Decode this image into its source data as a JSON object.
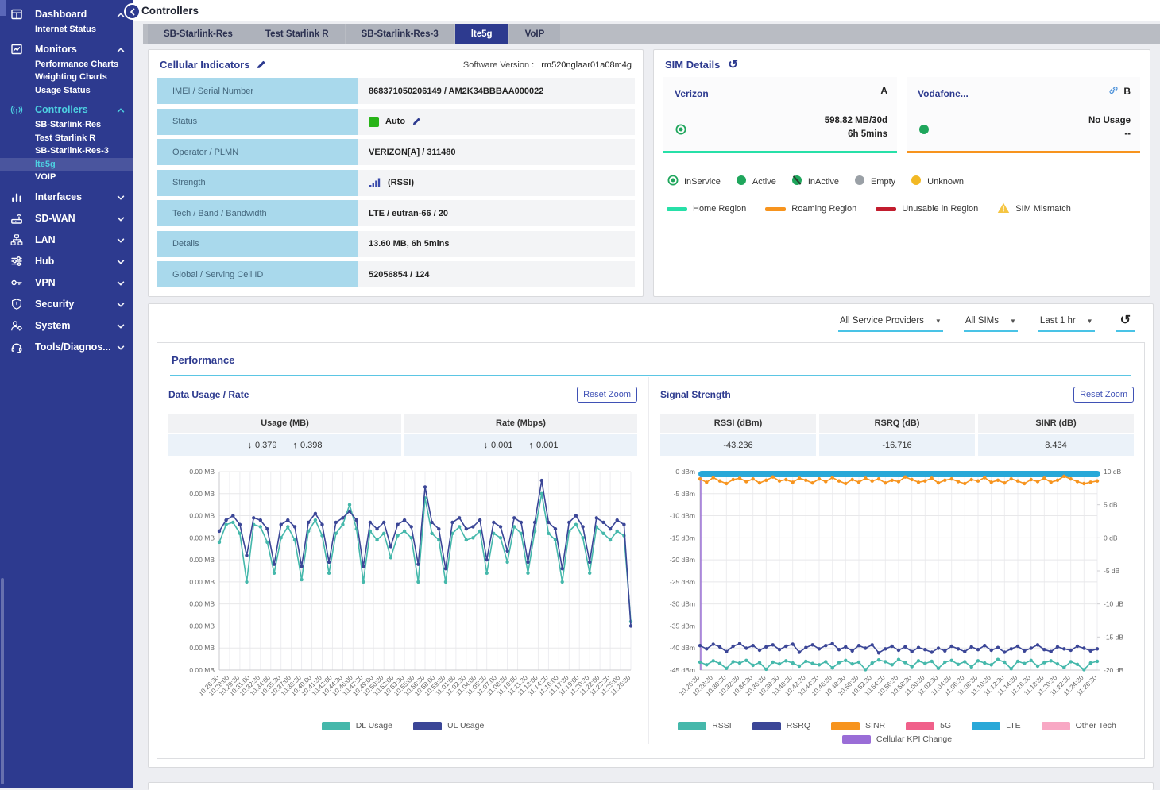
{
  "header": {
    "title": "Controllers"
  },
  "tabs": {
    "active_index": 3,
    "items": [
      "SB-Starlink-Res",
      "Test Starlink R",
      "SB-Starlink-Res-3",
      "lte5g",
      "VoIP"
    ]
  },
  "sidebar": {
    "items": [
      {
        "label": "Dashboard",
        "icon": "dashboard-icon",
        "expanded": true,
        "accent": false,
        "children": [
          {
            "label": "Internet Status",
            "selected": false
          }
        ]
      },
      {
        "label": "Monitors",
        "icon": "monitors-icon",
        "expanded": true,
        "accent": false,
        "children": [
          {
            "label": "Performance Charts",
            "selected": false
          },
          {
            "label": "Weighting Charts",
            "selected": false
          },
          {
            "label": "Usage Status",
            "selected": false
          }
        ]
      },
      {
        "label": "Controllers",
        "icon": "controllers-icon",
        "expanded": true,
        "accent": true,
        "children": [
          {
            "label": "SB-Starlink-Res",
            "selected": false
          },
          {
            "label": "Test Starlink R",
            "selected": false
          },
          {
            "label": "SB-Starlink-Res-3",
            "selected": false
          },
          {
            "label": "lte5g",
            "selected": true
          },
          {
            "label": "VOIP",
            "selected": false
          }
        ]
      },
      {
        "label": "Interfaces",
        "icon": "interfaces-icon",
        "expanded": false,
        "accent": false,
        "children": []
      },
      {
        "label": "SD-WAN",
        "icon": "sdwan-icon",
        "expanded": false,
        "accent": false,
        "children": []
      },
      {
        "label": "LAN",
        "icon": "lan-icon",
        "expanded": false,
        "accent": false,
        "children": []
      },
      {
        "label": "Hub",
        "icon": "hub-icon",
        "expanded": false,
        "accent": false,
        "children": []
      },
      {
        "label": "VPN",
        "icon": "vpn-icon",
        "expanded": false,
        "accent": false,
        "children": []
      },
      {
        "label": "Security",
        "icon": "security-icon",
        "expanded": false,
        "accent": false,
        "children": []
      },
      {
        "label": "System",
        "icon": "system-icon",
        "expanded": false,
        "accent": false,
        "children": []
      },
      {
        "label": "Tools/Diagnos...",
        "icon": "tools-icon",
        "expanded": false,
        "accent": false,
        "children": []
      }
    ]
  },
  "cellular": {
    "title": "Cellular Indicators",
    "software_version_label": "Software Version :",
    "software_version": "rm520nglaar01a08m4g",
    "rows": [
      {
        "label": "IMEI / Serial Number",
        "value": "868371050206149 / AM2K34BBBAA000022",
        "type": "text"
      },
      {
        "label": "Status",
        "value": "Auto",
        "type": "status"
      },
      {
        "label": "Operator / PLMN",
        "value": "VERIZON[A] / 311480",
        "type": "text"
      },
      {
        "label": "Strength",
        "value": "(RSSI)",
        "type": "signal"
      },
      {
        "label": "Tech / Band / Bandwidth",
        "value": "LTE / eutran-66 / 20",
        "type": "text"
      },
      {
        "label": "Details",
        "value": "13.60 MB, 6h 5mins",
        "type": "text"
      },
      {
        "label": "Global / Serving Cell ID",
        "value": "52056854 / 124",
        "type": "text"
      }
    ]
  },
  "sim_details": {
    "title": "SIM Details",
    "cards": [
      {
        "name": "Verizon",
        "slot": "A",
        "linked": false,
        "status": "inservice",
        "usage": "598.82 MB/30d",
        "duration": "6h 5mins",
        "region_color": "#27e0a8"
      },
      {
        "name": "Vodafone...",
        "slot": "B",
        "linked": true,
        "status": "active",
        "usage": "No Usage",
        "duration": "--",
        "region_color": "#f7941e"
      }
    ],
    "status_legend": [
      {
        "label": "InService",
        "type": "inservice"
      },
      {
        "label": "Active",
        "type": "active"
      },
      {
        "label": "InActive",
        "type": "inactive"
      },
      {
        "label": "Empty",
        "type": "empty"
      },
      {
        "label": "Unknown",
        "type": "unknown"
      }
    ],
    "region_legend": [
      {
        "label": "Home Region",
        "color": "#27e0a8",
        "type": "bar"
      },
      {
        "label": "Roaming Region",
        "color": "#f7941e",
        "type": "bar"
      },
      {
        "label": "Unusable in Region",
        "color": "#c21d2e",
        "type": "bar"
      },
      {
        "label": "SIM Mismatch",
        "color": "#f5c542",
        "type": "warn"
      }
    ]
  },
  "filters": {
    "service_provider": "All Service Providers",
    "sims": "All SIMs",
    "time_range": "Last 1 hr"
  },
  "performance": {
    "title": "Performance",
    "data_usage": {
      "title": "Data Usage / Rate",
      "reset_zoom": "Reset Zoom",
      "stats": [
        {
          "header": "Usage (MB)",
          "down": "0.379",
          "up": "0.398"
        },
        {
          "header": "Rate (Mbps)",
          "down": "0.001",
          "up": "0.001"
        }
      ]
    },
    "signal": {
      "title": "Signal Strength",
      "reset_zoom": "Reset Zoom",
      "stats": [
        {
          "header": "RSSI (dBm)",
          "value": "-43.236"
        },
        {
          "header": "RSRQ (dB)",
          "value": "-16.716"
        },
        {
          "header": "SINR (dB)",
          "value": "8.434"
        }
      ]
    }
  },
  "colors": {
    "sidebar_bg": "#2d3a8f",
    "accent_cyan": "#4dd0e1",
    "teal_series": "#45b8ab",
    "navy_series": "#3b4697",
    "orange_series": "#f7941e",
    "lte_blue": "#29a8d8",
    "pink_5g": "#f0608a",
    "light_pink": "#f8a8c4",
    "purple_kpi": "#9a6dd7",
    "home_region": "#27e0a8",
    "roaming_region": "#f7941e",
    "unusable_red": "#c21d2e",
    "status_green": "#28b418"
  },
  "chart_data": [
    {
      "type": "line",
      "title": "Data Usage / Rate",
      "ylabel": "Usage (MB)",
      "grid": true,
      "legend_position": "bottom",
      "axes": {
        "left": {
          "lim": [
            0.009,
            0
          ],
          "tick_labels": [
            "0.00 MB",
            "0.00 MB",
            "0.00 MB",
            "0.00 MB",
            "0.00 MB",
            "0.00 MB",
            "0.00 MB",
            "0.00 MB",
            "0.00 MB",
            "0.00 MB"
          ]
        }
      },
      "x_tick_labels": [
        "10:26:30",
        "10:28:00",
        "10:29:30",
        "10:31:00",
        "10:32:30",
        "10:34:00",
        "10:35:30",
        "10:37:00",
        "10:38:30",
        "10:40:00",
        "10:41:30",
        "10:43:00",
        "10:44:30",
        "10:46:00",
        "10:47:30",
        "10:49:00",
        "10:50:30",
        "10:52:00",
        "10:53:30",
        "10:55:00",
        "10:56:30",
        "10:58:00",
        "10:59:30",
        "11:01:00",
        "11:02:30",
        "11:04:00",
        "11:05:30",
        "11:07:00",
        "11:08:30",
        "11:10:00",
        "11:11:30",
        "11:13:00",
        "11:14:30",
        "11:16:00",
        "11:17:30",
        "11:19:00",
        "11:20:30",
        "11:22:00",
        "11:23:30",
        "11:25:00",
        "11:26:30"
      ],
      "series": [
        {
          "name": "DL Usage",
          "axis": "left",
          "color": "#45b8ab",
          "values": [
            0.0058,
            0.0066,
            0.0067,
            0.0062,
            0.004,
            0.0066,
            0.0065,
            0.0058,
            0.0044,
            0.006,
            0.0065,
            0.0059,
            0.0041,
            0.0063,
            0.0068,
            0.0061,
            0.0044,
            0.0062,
            0.0066,
            0.0075,
            0.0064,
            0.004,
            0.0063,
            0.0059,
            0.0062,
            0.0051,
            0.0061,
            0.0063,
            0.006,
            0.004,
            0.0078,
            0.0062,
            0.0059,
            0.004,
            0.0062,
            0.0065,
            0.0059,
            0.006,
            0.0063,
            0.0044,
            0.0062,
            0.006,
            0.0049,
            0.0065,
            0.0062,
            0.0044,
            0.0063,
            0.008,
            0.0062,
            0.0059,
            0.004,
            0.0063,
            0.0066,
            0.006,
            0.0044,
            0.0065,
            0.0062,
            0.0059,
            0.0063,
            0.0061,
            0.0022
          ]
        },
        {
          "name": "UL Usage",
          "axis": "left",
          "color": "#3b4697",
          "values": [
            0.0063,
            0.0068,
            0.007,
            0.0066,
            0.0052,
            0.0069,
            0.0068,
            0.0064,
            0.0048,
            0.0066,
            0.0068,
            0.0065,
            0.0047,
            0.0067,
            0.0071,
            0.0066,
            0.0049,
            0.0067,
            0.0069,
            0.0072,
            0.0068,
            0.0047,
            0.0067,
            0.0064,
            0.0067,
            0.0056,
            0.0066,
            0.0068,
            0.0065,
            0.0048,
            0.0083,
            0.0067,
            0.0064,
            0.0046,
            0.0067,
            0.0069,
            0.0064,
            0.0065,
            0.0068,
            0.005,
            0.0067,
            0.0065,
            0.0054,
            0.0069,
            0.0067,
            0.0049,
            0.0067,
            0.0086,
            0.0067,
            0.0064,
            0.0046,
            0.0067,
            0.007,
            0.0065,
            0.0049,
            0.0069,
            0.0067,
            0.0064,
            0.0068,
            0.0066,
            0.002
          ]
        }
      ],
      "legend": [
        {
          "label": "DL Usage",
          "color": "#45b8ab"
        },
        {
          "label": "UL Usage",
          "color": "#3b4697"
        }
      ]
    },
    {
      "type": "line",
      "title": "Signal Strength",
      "grid": true,
      "legend_position": "bottom",
      "axes": {
        "left": {
          "lim": [
            0,
            -45
          ],
          "tick_labels": [
            "0 dBm",
            "-5 dBm",
            "-10 dBm",
            "-15 dBm",
            "-20 dBm",
            "-25 dBm",
            "-30 dBm",
            "-35 dBm",
            "-40 dBm",
            "-45 dBm"
          ]
        },
        "right": {
          "lim": [
            10,
            -20
          ],
          "tick_labels": [
            "10 dB",
            "5 dB",
            "0 dB",
            "-5 dB",
            "-10 dB",
            "-15 dB",
            "-20 dB"
          ]
        }
      },
      "x_tick_labels": [
        "10:26:30",
        "10:28:30",
        "10:30:30",
        "10:32:30",
        "10:34:30",
        "10:36:30",
        "10:38:30",
        "10:40:30",
        "10:42:30",
        "10:44:30",
        "10:46:30",
        "10:48:30",
        "10:50:30",
        "10:52:30",
        "10:54:30",
        "10:56:30",
        "10:58:30",
        "11:00:30",
        "11:02:30",
        "11:04:30",
        "11:06:30",
        "11:08:30",
        "11:10:30",
        "11:12:30",
        "11:14:30",
        "11:16:30",
        "11:18:30",
        "11:20:30",
        "11:22:30",
        "11:24:30",
        "11:26:30"
      ],
      "series": [
        {
          "name": "LTE",
          "axis": "right",
          "color": "#29a8d8",
          "constant": 10,
          "thick": true
        },
        {
          "name": "SINR",
          "axis": "right",
          "color": "#f7941e",
          "values": [
            8.9,
            8.4,
            9.1,
            8.6,
            8.2,
            8.8,
            9.0,
            8.5,
            8.9,
            8.3,
            8.7,
            9.2,
            8.6,
            8.8,
            8.4,
            9.0,
            8.7,
            8.3,
            8.9,
            8.5,
            9.1,
            8.6,
            8.2,
            8.8,
            8.4,
            9.0,
            8.6,
            8.9,
            8.3,
            8.7,
            8.5,
            9.2,
            8.8,
            8.4,
            8.6,
            9.0,
            8.3,
            8.7,
            8.9,
            8.5,
            8.2,
            8.8,
            8.6,
            9.1,
            8.4,
            8.7,
            8.3,
            8.9,
            8.6,
            8.2,
            8.8,
            8.5,
            9.0,
            8.4,
            8.7,
            9.3,
            8.9,
            8.5,
            8.2,
            8.4,
            8.6
          ]
        },
        {
          "name": "RSRQ",
          "axis": "right",
          "color": "#3b4697",
          "values": [
            -16.3,
            -16.8,
            -16.1,
            -16.5,
            -17.2,
            -16.4,
            -16.0,
            -16.7,
            -16.3,
            -17.0,
            -16.5,
            -16.2,
            -16.9,
            -16.4,
            -16.1,
            -17.3,
            -16.6,
            -16.2,
            -16.8,
            -16.3,
            -16.0,
            -16.9,
            -16.5,
            -17.1,
            -16.3,
            -16.7,
            -16.2,
            -17.4,
            -16.8,
            -16.4,
            -17.0,
            -16.5,
            -17.2,
            -16.6,
            -16.9,
            -17.3,
            -16.7,
            -17.1,
            -16.4,
            -16.8,
            -17.2,
            -16.5,
            -16.9,
            -16.3,
            -17.0,
            -16.6,
            -17.3,
            -16.8,
            -16.4,
            -17.1,
            -16.7,
            -16.2,
            -16.9,
            -17.2,
            -16.5,
            -16.8,
            -17.0,
            -16.4,
            -16.7,
            -17.1,
            -16.8
          ]
        },
        {
          "name": "RSSI",
          "axis": "left",
          "color": "#45b8ab",
          "values": [
            -43.2,
            -43.8,
            -42.9,
            -43.5,
            -44.6,
            -43.1,
            -43.4,
            -42.8,
            -43.9,
            -43.3,
            -44.8,
            -43.2,
            -43.6,
            -42.9,
            -43.4,
            -44.1,
            -43.0,
            -43.5,
            -43.8,
            -43.1,
            -44.5,
            -43.3,
            -42.8,
            -43.6,
            -43.2,
            -44.9,
            -43.4,
            -42.7,
            -43.1,
            -43.8,
            -42.6,
            -43.3,
            -44.2,
            -42.9,
            -43.5,
            -43.0,
            -44.6,
            -43.2,
            -42.8,
            -43.7,
            -43.1,
            -44.3,
            -42.9,
            -43.4,
            -43.8,
            -42.6,
            -43.2,
            -44.7,
            -43.0,
            -43.5,
            -42.8,
            -44.1,
            -43.3,
            -42.9,
            -43.6,
            -44.4,
            -43.1,
            -43.7,
            -44.9,
            -43.4,
            -43.0
          ]
        }
      ],
      "events": [
        {
          "name": "Cellular KPI Change",
          "color": "#9a6dd7",
          "x_index": 0
        }
      ],
      "legend": [
        {
          "label": "RSSI",
          "color": "#45b8ab"
        },
        {
          "label": "RSRQ",
          "color": "#3b4697"
        },
        {
          "label": "SINR",
          "color": "#f7941e"
        },
        {
          "label": "5G",
          "color": "#f0608a"
        },
        {
          "label": "LTE",
          "color": "#29a8d8"
        },
        {
          "label": "Other Tech",
          "color": "#f8a8c4"
        }
      ],
      "legend_row2": [
        {
          "label": "Cellular KPI Change",
          "color": "#9a6dd7"
        }
      ]
    }
  ]
}
